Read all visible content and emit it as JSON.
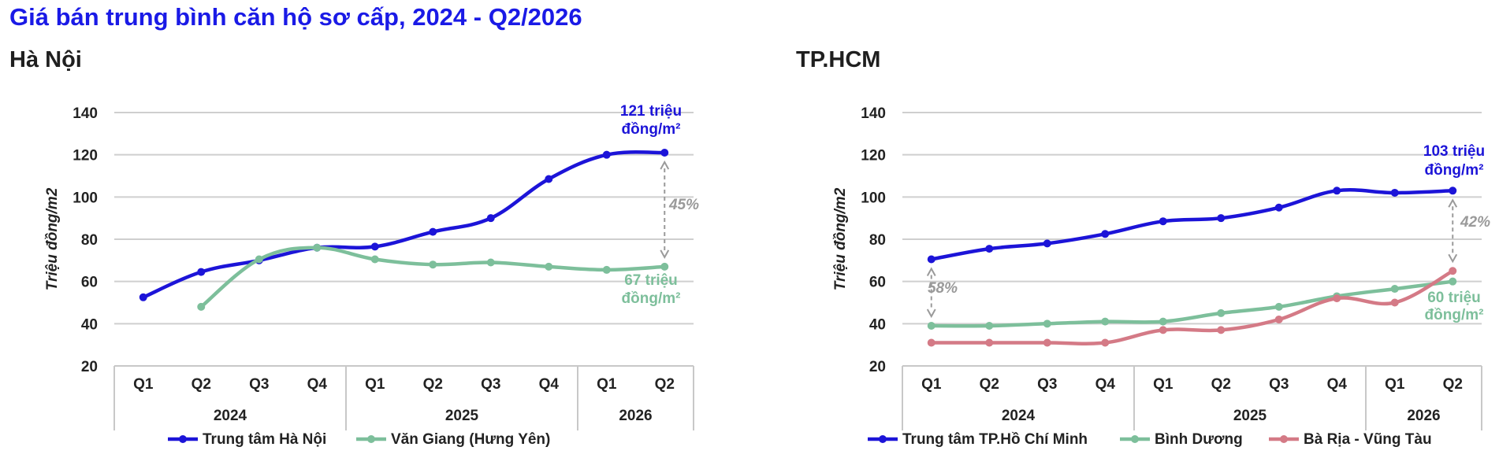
{
  "title": "Giá bán trung bình căn hộ sơ cấp, 2024 - Q2/2026",
  "charts": [
    {
      "panel_title": "Hà Nội"
    },
    {
      "panel_title": "TP.HCM"
    }
  ],
  "chart_data": [
    {
      "type": "line",
      "title": "Hà Nội",
      "ylabel": "Triệu đồng/m2",
      "ylim": [
        20,
        140
      ],
      "yticks": [
        20,
        40,
        60,
        80,
        100,
        120,
        140
      ],
      "grid": true,
      "categories": [
        "Q1",
        "Q2",
        "Q3",
        "Q4",
        "Q1",
        "Q2",
        "Q3",
        "Q4",
        "Q1",
        "Q2"
      ],
      "year_groups": [
        {
          "label": "2024",
          "quarters": 4
        },
        {
          "label": "2025",
          "quarters": 4
        },
        {
          "label": "2026",
          "quarters": 2
        }
      ],
      "legend_position": "bottom",
      "series": [
        {
          "name": "Trung tâm Hà Nội",
          "color": "#1c14d8",
          "values": [
            52.5,
            64.5,
            70,
            76,
            76.5,
            83.5,
            90,
            108.5,
            120,
            121
          ]
        },
        {
          "name": "Văn Giang (Hưng Yên)",
          "color": "#7dbf9b",
          "values": [
            null,
            48,
            70.5,
            76,
            70.5,
            68,
            69,
            67,
            65.5,
            67
          ]
        }
      ],
      "annotations": [
        {
          "text": "121 triệu",
          "text2": "đồng/m²",
          "color": "#1c14d8"
        },
        {
          "text": "67 triệu",
          "text2": "đồng/m²",
          "color": "#7dbf9b"
        },
        {
          "text": "45%",
          "color": "#9a9a9a"
        }
      ]
    },
    {
      "type": "line",
      "title": "TP.HCM",
      "ylabel": "Triệu đồng/m2",
      "ylim": [
        20,
        140
      ],
      "yticks": [
        20,
        40,
        60,
        80,
        100,
        120,
        140
      ],
      "grid": true,
      "categories": [
        "Q1",
        "Q2",
        "Q3",
        "Q4",
        "Q1",
        "Q2",
        "Q3",
        "Q4",
        "Q1",
        "Q2"
      ],
      "year_groups": [
        {
          "label": "2024",
          "quarters": 4
        },
        {
          "label": "2025",
          "quarters": 4
        },
        {
          "label": "2026",
          "quarters": 2
        }
      ],
      "legend_position": "bottom",
      "series": [
        {
          "name": "Trung tâm TP.Hồ Chí Minh",
          "color": "#1c14d8",
          "values": [
            70.5,
            75.5,
            78,
            82.5,
            88.5,
            90,
            95,
            103,
            102,
            103
          ]
        },
        {
          "name": "Bình Dương",
          "color": "#7dbf9b",
          "values": [
            39,
            39,
            40,
            41,
            41,
            45,
            48,
            53,
            56.5,
            60
          ]
        },
        {
          "name": "Bà Rịa - Vũng Tàu",
          "color": "#d47a86",
          "values": [
            31,
            31,
            31,
            31,
            37,
            37,
            42,
            52,
            50,
            65
          ]
        }
      ],
      "annotations": [
        {
          "text": "103 triệu",
          "text2": "đồng/m²",
          "color": "#1c14d8"
        },
        {
          "text": "60 triệu",
          "text2": "đồng/m²",
          "color": "#7dbf9b"
        },
        {
          "text": "58%",
          "color": "#9a9a9a"
        },
        {
          "text": "42%",
          "color": "#9a9a9a"
        }
      ]
    }
  ]
}
